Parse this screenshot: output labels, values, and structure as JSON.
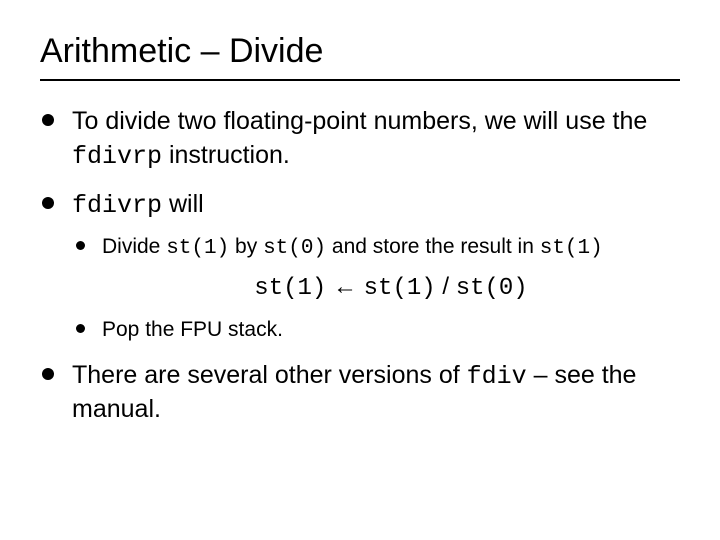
{
  "title": "Arithmetic – Divide",
  "b1": {
    "pre": "To divide two floating-point numbers, we will use the ",
    "code": "fdivrp",
    "post": " instruction."
  },
  "b2": {
    "code": "fdivrp",
    "post": " will",
    "s1": {
      "a": "Divide ",
      "c1": "st(1)",
      "b": " by ",
      "c2": "st(0)",
      "c": " and store the result in ",
      "c3": "st(1)"
    },
    "formula": {
      "l": "st(1)",
      "arrow": " ← ",
      "m": "st(1)",
      "slash": " / ",
      "r": "st(0)"
    },
    "s2": "Pop the FPU stack."
  },
  "b3": {
    "pre": "There are several other versions of ",
    "code": "fdiv",
    "post": " – see the manual."
  },
  "colors": {
    "text": "#000000",
    "bg": "#ffffff"
  },
  "fontsize": {
    "title": 34,
    "bullet": 25,
    "sub": 21,
    "formula": 24
  }
}
